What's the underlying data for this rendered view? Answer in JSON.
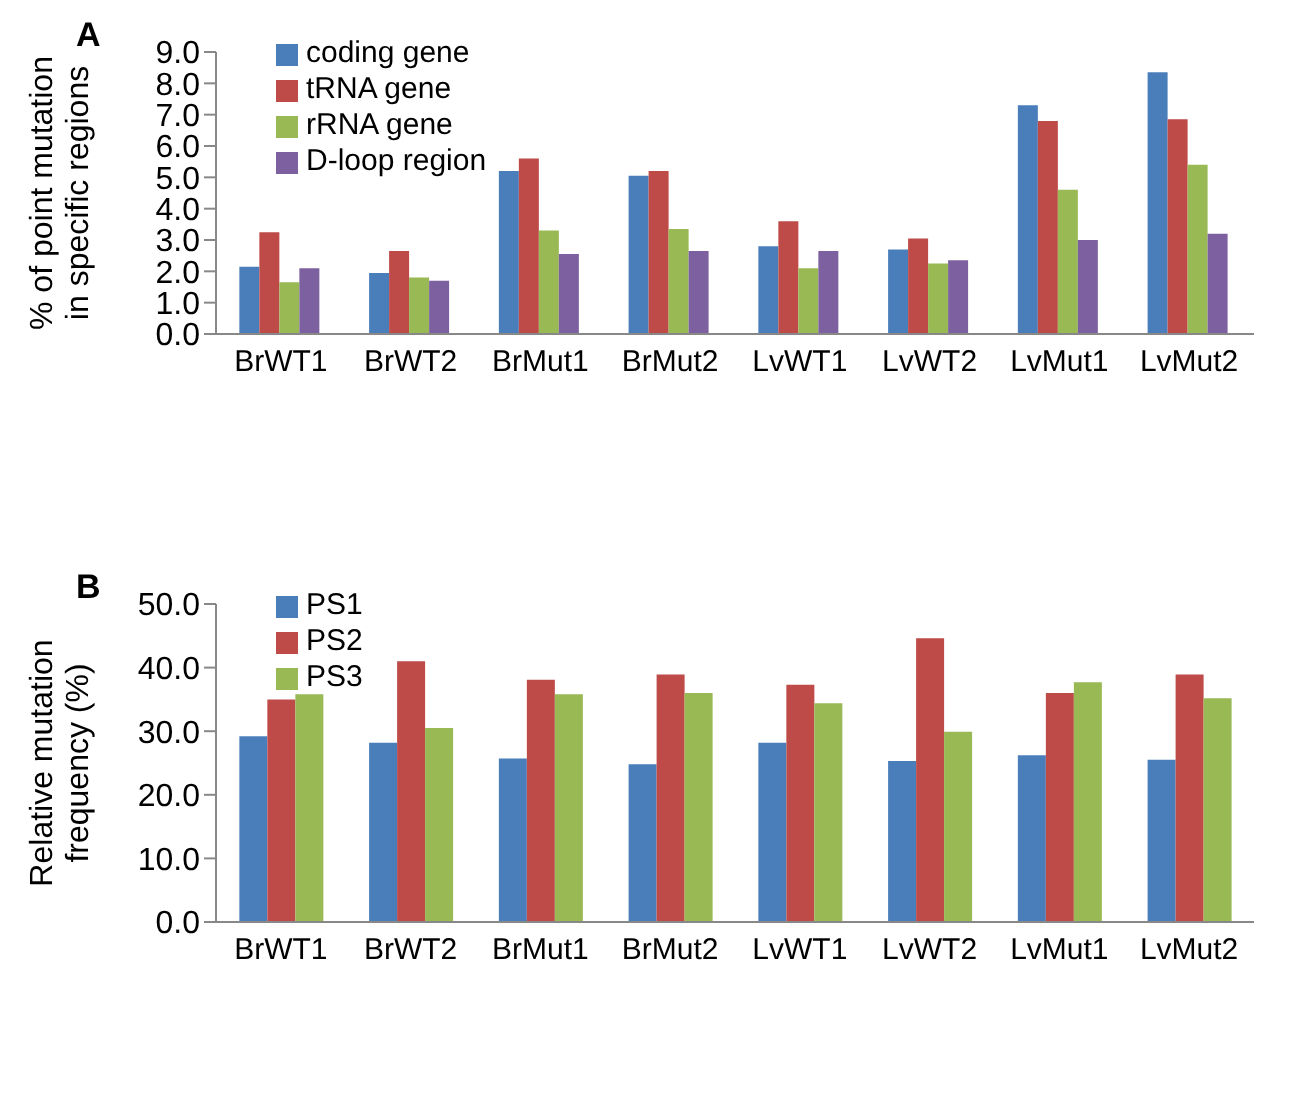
{
  "chart_data": [
    {
      "type": "bar",
      "title": "A",
      "ylabel": "% of  point mutation\nin specific regions",
      "categories": [
        "BrWT1",
        "BrWT2",
        "BrMut1",
        "BrMut2",
        "LvWT1",
        "LvWT2",
        "LvMut1",
        "LvMut2"
      ],
      "series": [
        {
          "name": "coding gene",
          "color": "#4a7ebb",
          "values": [
            2.15,
            1.95,
            5.2,
            5.05,
            2.8,
            2.7,
            7.3,
            8.35
          ]
        },
        {
          "name": "tRNA gene",
          "color": "#be4b48",
          "values": [
            3.25,
            2.65,
            5.6,
            5.2,
            3.6,
            3.05,
            6.8,
            6.85
          ]
        },
        {
          "name": "rRNA gene",
          "color": "#98b954",
          "values": [
            1.65,
            1.8,
            3.3,
            3.35,
            2.1,
            2.25,
            4.6,
            5.4
          ]
        },
        {
          "name": "D-loop region",
          "color": "#7d60a0",
          "values": [
            2.1,
            1.7,
            2.55,
            2.65,
            2.65,
            2.35,
            3.0,
            3.2
          ]
        }
      ],
      "ylim": [
        0,
        9
      ],
      "yticks": [
        {
          "value": 0,
          "label": "0.0"
        },
        {
          "value": 1,
          "label": "1.0"
        },
        {
          "value": 2,
          "label": "2.0"
        },
        {
          "value": 3,
          "label": "3.0"
        },
        {
          "value": 4,
          "label": "4.0"
        },
        {
          "value": 5,
          "label": "5.0"
        },
        {
          "value": 6,
          "label": "6.0"
        },
        {
          "value": 7,
          "label": "7.0"
        },
        {
          "value": 8,
          "label": "8.0"
        },
        {
          "value": 9,
          "label": "9.0"
        }
      ],
      "grid": false,
      "legend": "top left"
    },
    {
      "type": "bar",
      "title": "B",
      "ylabel": "Relative mutation\nfrequency (%)",
      "categories": [
        "BrWT1",
        "BrWT2",
        "BrMut1",
        "BrMut2",
        "LvWT1",
        "LvWT2",
        "LvMut1",
        "LvMut2"
      ],
      "series": [
        {
          "name": "PS1",
          "color": "#4a7ebb",
          "values": [
            29.2,
            28.2,
            25.7,
            24.8,
            28.2,
            25.3,
            26.2,
            25.5
          ]
        },
        {
          "name": "PS2",
          "color": "#be4b48",
          "values": [
            35.0,
            41.0,
            38.1,
            38.9,
            37.3,
            44.6,
            36.0,
            38.9
          ]
        },
        {
          "name": "PS3",
          "color": "#98b954",
          "values": [
            35.8,
            30.5,
            35.8,
            36.0,
            34.4,
            29.9,
            37.7,
            35.2
          ]
        }
      ],
      "ylim": [
        0,
        50
      ],
      "yticks": [
        {
          "value": 0,
          "label": "0.0"
        },
        {
          "value": 10,
          "label": "10.0"
        },
        {
          "value": 20,
          "label": "20.0"
        },
        {
          "value": 30,
          "label": "30.0"
        },
        {
          "value": 40,
          "label": "40.0"
        },
        {
          "value": 50,
          "label": "50.0"
        }
      ],
      "grid": false,
      "legend": "top left"
    }
  ]
}
